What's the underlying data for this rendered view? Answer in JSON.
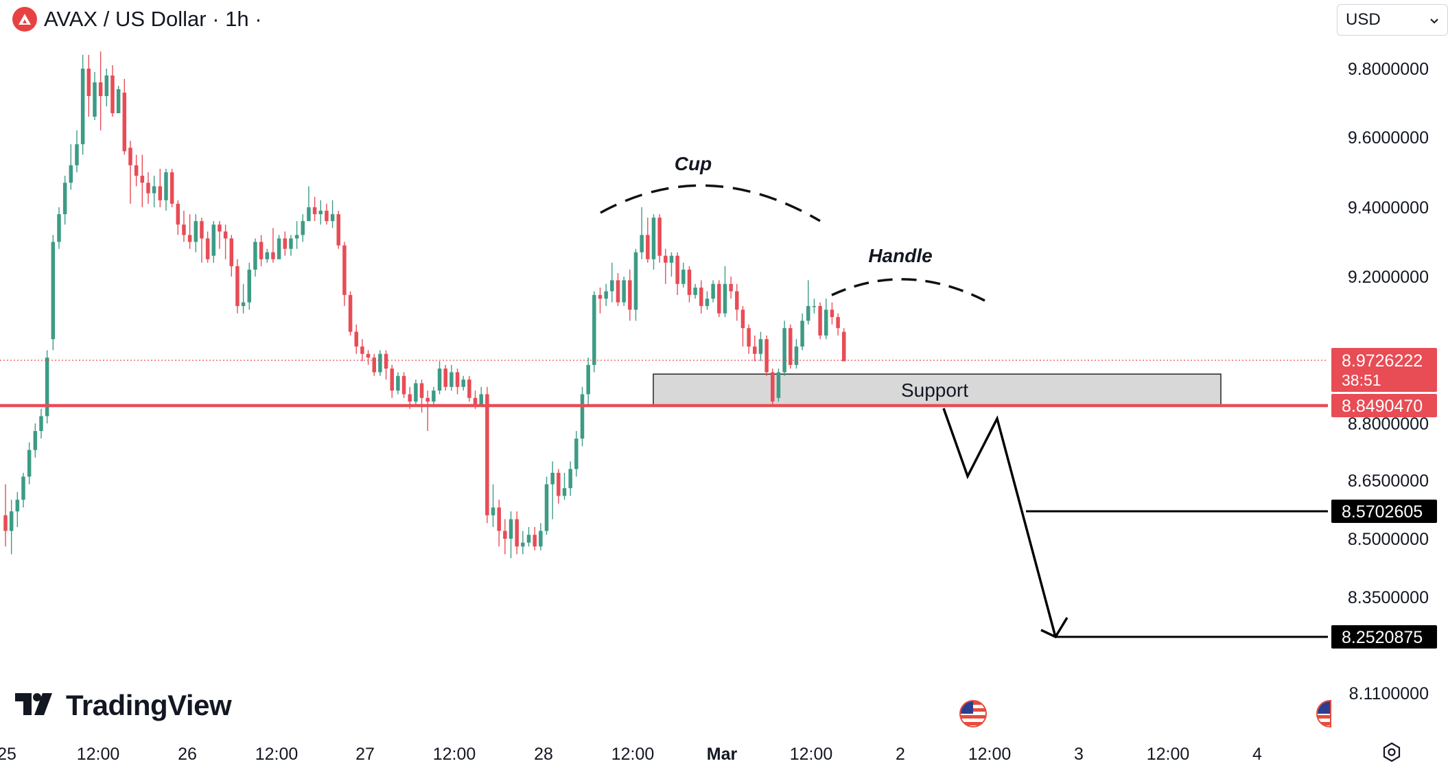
{
  "header": {
    "title": "AVAX / US Dollar · 1h ·",
    "currency": "USD",
    "logo_icon": "avax-logo-icon"
  },
  "branding": {
    "name": "TradingView",
    "icon": "tradingview-logo-icon"
  },
  "colors": {
    "up": "#26a69a",
    "up_body": "#3d9b85",
    "down": "#e84c55",
    "support_line": "#e84c55",
    "support_zone": "#d8d8d8",
    "price_badge": "#e84c55",
    "target_badge": "#000000"
  },
  "chart_data": {
    "type": "candlestick",
    "y_axis": {
      "ticks": [
        9.8,
        9.6,
        9.4,
        9.2,
        8.8,
        8.65,
        8.5,
        8.35,
        8.11
      ],
      "tick_labels": [
        "9.8000000",
        "9.6000000",
        "9.4000000",
        "9.2000000",
        "8.8000000",
        "8.6500000",
        "8.5000000",
        "8.3500000",
        "8.1100000"
      ]
    },
    "x_axis": {
      "ticks": [
        "25",
        "12:00",
        "26",
        "12:00",
        "27",
        "12:00",
        "28",
        "12:00",
        "Mar",
        "12:00",
        "2",
        "12:00",
        "3",
        "12:00",
        "4"
      ]
    },
    "price_badges": [
      {
        "label": "8.9726222",
        "sub": "38:51",
        "value": 8.9726222,
        "style": "current"
      },
      {
        "label": "8.8490470",
        "value": 8.849047,
        "style": "support"
      },
      {
        "label": "8.5702605",
        "value": 8.5702605,
        "style": "target"
      },
      {
        "label": "8.2520875",
        "value": 8.2520875,
        "style": "target"
      }
    ],
    "annotations": {
      "cup_label": "Cup",
      "handle_label": "Handle",
      "support_label": "Support"
    },
    "support_zone": {
      "top": 8.935,
      "bottom": 8.849
    },
    "candles": [
      [
        8.56,
        8.52,
        8.64,
        8.48
      ],
      [
        8.52,
        8.57,
        8.6,
        8.46
      ],
      [
        8.57,
        8.6,
        8.62,
        8.53
      ],
      [
        8.6,
        8.66,
        8.67,
        8.58
      ],
      [
        8.66,
        8.73,
        8.75,
        8.64
      ],
      [
        8.73,
        8.78,
        8.8,
        8.71
      ],
      [
        8.78,
        8.82,
        8.84,
        8.76
      ],
      [
        8.82,
        8.98,
        9.0,
        8.8
      ],
      [
        9.03,
        9.3,
        9.32,
        9.0
      ],
      [
        9.3,
        9.38,
        9.4,
        9.28
      ],
      [
        9.38,
        9.47,
        9.49,
        9.35
      ],
      [
        9.47,
        9.52,
        9.58,
        9.45
      ],
      [
        9.52,
        9.58,
        9.62,
        9.5
      ],
      [
        9.58,
        9.8,
        9.84,
        9.55
      ],
      [
        9.8,
        9.72,
        9.84,
        9.66
      ],
      [
        9.66,
        9.76,
        9.79,
        9.65
      ],
      [
        9.76,
        9.72,
        9.85,
        9.62
      ],
      [
        9.72,
        9.78,
        9.8,
        9.69
      ],
      [
        9.78,
        9.67,
        9.81,
        9.66
      ],
      [
        9.67,
        9.74,
        9.75,
        9.7
      ],
      [
        9.73,
        9.56,
        9.77,
        9.55
      ],
      [
        9.57,
        9.52,
        9.59,
        9.41
      ],
      [
        9.52,
        9.49,
        9.55,
        9.46
      ],
      [
        9.49,
        9.47,
        9.55,
        9.4
      ],
      [
        9.47,
        9.44,
        9.5,
        9.41
      ],
      [
        9.44,
        9.46,
        9.49,
        9.4
      ],
      [
        9.46,
        9.42,
        9.51,
        9.4
      ],
      [
        9.42,
        9.5,
        9.51,
        9.39
      ],
      [
        9.5,
        9.41,
        9.51,
        9.4
      ],
      [
        9.41,
        9.35,
        9.42,
        9.32
      ],
      [
        9.35,
        9.32,
        9.39,
        9.3
      ],
      [
        9.32,
        9.3,
        9.38,
        9.28
      ],
      [
        9.3,
        9.36,
        9.38,
        9.27
      ],
      [
        9.36,
        9.31,
        9.37,
        9.24
      ],
      [
        9.31,
        9.25,
        9.33,
        9.24
      ],
      [
        9.26,
        9.35,
        9.36,
        9.24
      ],
      [
        9.35,
        9.33,
        9.36,
        9.28
      ],
      [
        9.33,
        9.31,
        9.35,
        9.25
      ],
      [
        9.31,
        9.23,
        9.32,
        9.2
      ],
      [
        9.23,
        9.12,
        9.25,
        9.1
      ],
      [
        9.12,
        9.13,
        9.18,
        9.1
      ],
      [
        9.13,
        9.22,
        9.24,
        9.11
      ],
      [
        9.22,
        9.3,
        9.31,
        9.2
      ],
      [
        9.3,
        9.25,
        9.32,
        9.23
      ],
      [
        9.25,
        9.27,
        9.28,
        9.24
      ],
      [
        9.27,
        9.25,
        9.34,
        9.24
      ],
      [
        9.25,
        9.31,
        9.32,
        9.25
      ],
      [
        9.31,
        9.28,
        9.33,
        9.26
      ],
      [
        9.28,
        9.31,
        9.32,
        9.26
      ],
      [
        9.31,
        9.32,
        9.36,
        9.28
      ],
      [
        9.32,
        9.36,
        9.38,
        9.3
      ],
      [
        9.36,
        9.4,
        9.46,
        9.36
      ],
      [
        9.4,
        9.38,
        9.43,
        9.36
      ],
      [
        9.38,
        9.39,
        9.42,
        9.35
      ],
      [
        9.39,
        9.36,
        9.41,
        9.35
      ],
      [
        9.36,
        9.38,
        9.42,
        9.34
      ],
      [
        9.38,
        9.29,
        9.39,
        9.28
      ],
      [
        9.29,
        9.15,
        9.3,
        9.12
      ],
      [
        9.15,
        9.05,
        9.16,
        9.04
      ],
      [
        9.05,
        9.01,
        9.07,
        8.99
      ],
      [
        9.01,
        8.99,
        9.03,
        8.97
      ],
      [
        8.99,
        8.98,
        9.0,
        8.96
      ],
      [
        8.98,
        8.94,
        8.99,
        8.93
      ],
      [
        8.94,
        8.99,
        9.0,
        8.93
      ],
      [
        8.99,
        8.95,
        9.0,
        8.92
      ],
      [
        8.95,
        8.89,
        8.96,
        8.87
      ],
      [
        8.89,
        8.93,
        8.94,
        8.88
      ],
      [
        8.93,
        8.88,
        8.94,
        8.87
      ],
      [
        8.88,
        8.86,
        8.9,
        8.84
      ],
      [
        8.86,
        8.91,
        8.92,
        8.85
      ],
      [
        8.91,
        8.87,
        8.92,
        8.83
      ],
      [
        8.87,
        8.86,
        8.89,
        8.78
      ],
      [
        8.86,
        8.89,
        8.9,
        8.85
      ],
      [
        8.89,
        8.95,
        8.97,
        8.88
      ],
      [
        8.95,
        8.9,
        8.96,
        8.89
      ],
      [
        8.9,
        8.94,
        8.96,
        8.89
      ],
      [
        8.94,
        8.9,
        8.95,
        8.88
      ],
      [
        8.9,
        8.92,
        8.93,
        8.89
      ],
      [
        8.92,
        8.87,
        8.93,
        8.86
      ],
      [
        8.87,
        8.85,
        8.89,
        8.84
      ],
      [
        8.85,
        8.88,
        8.9,
        8.85
      ],
      [
        8.88,
        8.56,
        8.9,
        8.54
      ],
      [
        8.56,
        8.58,
        8.64,
        8.53
      ],
      [
        8.58,
        8.52,
        8.6,
        8.48
      ],
      [
        8.52,
        8.5,
        8.55,
        8.46
      ],
      [
        8.5,
        8.55,
        8.57,
        8.45
      ],
      [
        8.55,
        8.48,
        8.57,
        8.46
      ],
      [
        8.48,
        8.49,
        8.52,
        8.46
      ],
      [
        8.49,
        8.51,
        8.53,
        8.48
      ],
      [
        8.51,
        8.48,
        8.53,
        8.47
      ],
      [
        8.48,
        8.52,
        8.54,
        8.47
      ],
      [
        8.52,
        8.64,
        8.66,
        8.51
      ],
      [
        8.64,
        8.67,
        8.7,
        8.55
      ],
      [
        8.67,
        8.61,
        8.68,
        8.59
      ],
      [
        8.61,
        8.63,
        8.67,
        8.6
      ],
      [
        8.63,
        8.68,
        8.7,
        8.61
      ],
      [
        8.68,
        8.76,
        8.78,
        8.66
      ],
      [
        8.76,
        8.88,
        8.9,
        8.74
      ],
      [
        8.88,
        8.96,
        8.98,
        8.85
      ],
      [
        8.96,
        9.15,
        9.16,
        8.94
      ],
      [
        9.15,
        9.14,
        9.17,
        9.1
      ],
      [
        9.14,
        9.16,
        9.18,
        9.12
      ],
      [
        9.16,
        9.19,
        9.24,
        9.13
      ],
      [
        9.19,
        9.13,
        9.21,
        9.12
      ],
      [
        9.13,
        9.19,
        9.2,
        9.12
      ],
      [
        9.19,
        9.11,
        9.22,
        9.08
      ],
      [
        9.11,
        9.27,
        9.28,
        9.08
      ],
      [
        9.27,
        9.32,
        9.4,
        9.25
      ],
      [
        9.32,
        9.25,
        9.37,
        9.24
      ],
      [
        9.25,
        9.37,
        9.38,
        9.22
      ],
      [
        9.37,
        9.26,
        9.38,
        9.24
      ],
      [
        9.26,
        9.24,
        9.28,
        9.18
      ],
      [
        9.24,
        9.26,
        9.27,
        9.2
      ],
      [
        9.26,
        9.18,
        9.27,
        9.15
      ],
      [
        9.18,
        9.22,
        9.24,
        9.17
      ],
      [
        9.22,
        9.15,
        9.23,
        9.13
      ],
      [
        9.15,
        9.17,
        9.18,
        9.14
      ],
      [
        9.17,
        9.12,
        9.19,
        9.1
      ],
      [
        9.12,
        9.14,
        9.16,
        9.11
      ],
      [
        9.14,
        9.18,
        9.19,
        9.13
      ],
      [
        9.18,
        9.1,
        9.19,
        9.09
      ],
      [
        9.1,
        9.18,
        9.23,
        9.09
      ],
      [
        9.18,
        9.16,
        9.2,
        9.14
      ],
      [
        9.16,
        9.11,
        9.18,
        9.08
      ],
      [
        9.11,
        9.06,
        9.12,
        9.01
      ],
      [
        9.06,
        9.01,
        9.07,
        8.99
      ],
      [
        9.01,
        8.99,
        9.04,
        8.97
      ],
      [
        8.99,
        9.03,
        9.05,
        8.97
      ],
      [
        9.03,
        8.94,
        9.04,
        8.93
      ],
      [
        8.94,
        8.86,
        8.95,
        8.85
      ],
      [
        8.87,
        8.94,
        8.95,
        8.86
      ],
      [
        8.94,
        9.06,
        9.08,
        8.93
      ],
      [
        9.06,
        8.96,
        9.07,
        8.95
      ],
      [
        8.96,
        9.01,
        9.03,
        8.95
      ],
      [
        9.01,
        9.08,
        9.1,
        9.0
      ],
      [
        9.08,
        9.12,
        9.19,
        9.07
      ],
      [
        9.12,
        9.12,
        9.14,
        9.1
      ],
      [
        9.12,
        9.04,
        9.13,
        9.03
      ],
      [
        9.04,
        9.11,
        9.14,
        9.03
      ],
      [
        9.11,
        9.09,
        9.13,
        9.07
      ],
      [
        9.09,
        9.06,
        9.1,
        9.04
      ],
      [
        9.05,
        8.97,
        9.06,
        8.97
      ]
    ]
  }
}
